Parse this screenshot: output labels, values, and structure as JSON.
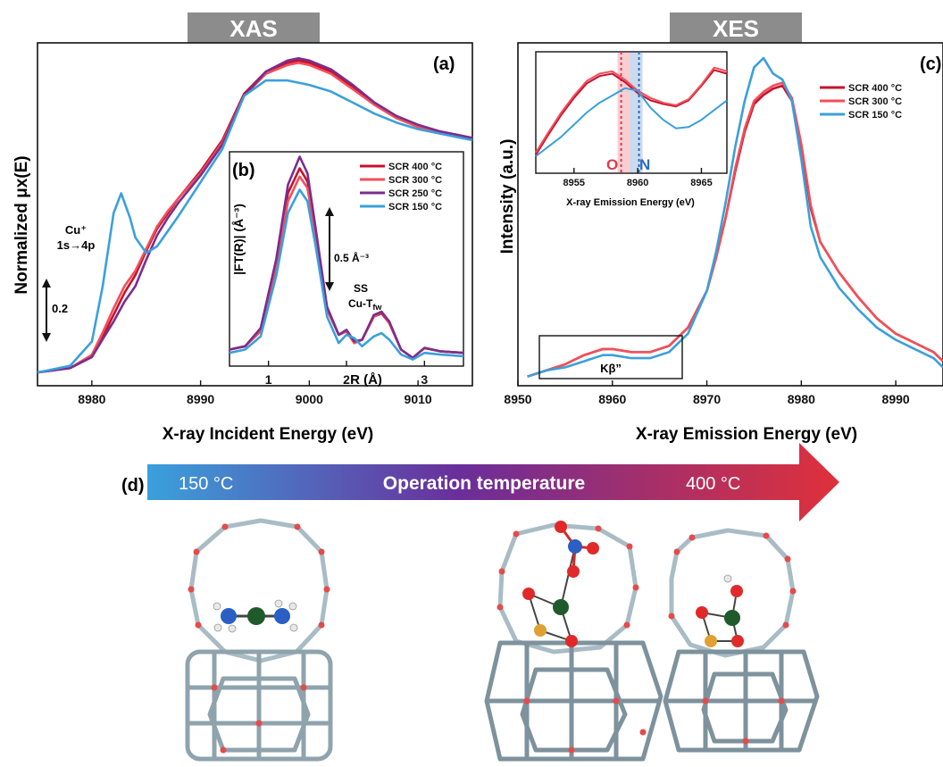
{
  "headers": {
    "xas": "XAS",
    "xes": "XES",
    "header_bg": "#8c8c8c"
  },
  "panel_a": {
    "letter": "(a)",
    "xlabel": "X-ray Incident Energy (eV)",
    "ylabel": "Normalized μx(E)",
    "cu_label_line1": "Cu⁺",
    "cu_label_line2": "1s→4p",
    "scalebar_label": "0.2"
  },
  "panel_b": {
    "letter": "(b)",
    "ylabel": "|FT(R)| (Å⁻³)",
    "xlabel": "R (Å)",
    "scalebar_label": "0.5 Å⁻³",
    "ss_label": "SS",
    "cutfw_label": "Cu-T",
    "cutfw_sub": "fw"
  },
  "panel_c": {
    "letter": "(c)",
    "xlabel": "X-ray Emission Energy (eV)",
    "ylabel": "Intensity (a.u.)",
    "kb_label": "Kβ”",
    "inset_xlabel": "X-ray Emission Energy (eV)",
    "o_label": "O",
    "n_label": "N"
  },
  "panel_d": {
    "letter": "(d)",
    "left_temp": "150 °C",
    "center_label": "Operation temperature",
    "right_temp": "400 °C",
    "arrow_colors": [
      "#3aa0dc",
      "#6a2e9a",
      "#e0303a"
    ]
  },
  "colors": {
    "scr400": "#c8102e",
    "scr300": "#f0505a",
    "scr250": "#7b2d8e",
    "scr150": "#3aa0dc",
    "O_line": "#e03a4a",
    "N_line": "#2a6cc0"
  },
  "chart_data": [
    {
      "id": "a",
      "type": "line",
      "title": "",
      "xlabel": "X-ray Incident Energy (eV)",
      "ylabel": "Normalized μx(E)",
      "xlim": [
        8975,
        9015
      ],
      "xticks": [
        8980,
        8990,
        9000,
        9010
      ],
      "ylim": [
        -0.05,
        1.5
      ],
      "series": [
        {
          "name": "SCR 400 °C",
          "color": "#c8102e",
          "x": [
            8975,
            8978,
            8980,
            8981,
            8982,
            8983,
            8984,
            8985,
            8986,
            8987,
            8988,
            8990,
            8992,
            8994,
            8996,
            8998,
            8999,
            9000,
            9002,
            9004,
            9006,
            9008,
            9010,
            9012,
            9015
          ],
          "y": [
            0.01,
            0.03,
            0.08,
            0.17,
            0.27,
            0.37,
            0.45,
            0.56,
            0.66,
            0.73,
            0.8,
            0.92,
            1.06,
            1.27,
            1.37,
            1.41,
            1.42,
            1.41,
            1.37,
            1.3,
            1.22,
            1.16,
            1.12,
            1.1,
            1.07
          ]
        },
        {
          "name": "SCR 300 °C",
          "color": "#f0505a",
          "x": [
            8975,
            8978,
            8980,
            8981,
            8982,
            8983,
            8984,
            8985,
            8986,
            8987,
            8988,
            8990,
            8992,
            8994,
            8996,
            8998,
            8999,
            9000,
            9002,
            9004,
            9006,
            9008,
            9010,
            9012,
            9015
          ],
          "y": [
            0.01,
            0.03,
            0.09,
            0.19,
            0.3,
            0.4,
            0.47,
            0.57,
            0.67,
            0.74,
            0.8,
            0.91,
            1.05,
            1.26,
            1.36,
            1.4,
            1.41,
            1.4,
            1.36,
            1.29,
            1.22,
            1.16,
            1.12,
            1.1,
            1.07
          ]
        },
        {
          "name": "SCR 250 °C",
          "color": "#7b2d8e",
          "x": [
            8975,
            8978,
            8980,
            8981,
            8982,
            8983,
            8984,
            8985,
            8986,
            8987,
            8988,
            8990,
            8992,
            8994,
            8996,
            8998,
            8999,
            9000,
            9002,
            9004,
            9006,
            9008,
            9010,
            9012,
            9015
          ],
          "y": [
            0.01,
            0.03,
            0.08,
            0.16,
            0.24,
            0.33,
            0.4,
            0.52,
            0.63,
            0.71,
            0.78,
            0.9,
            1.04,
            1.26,
            1.37,
            1.42,
            1.43,
            1.42,
            1.38,
            1.31,
            1.23,
            1.17,
            1.13,
            1.1,
            1.07
          ]
        },
        {
          "name": "SCR 150 °C",
          "color": "#3aa0dc",
          "x": [
            8975,
            8978,
            8980,
            8981,
            8982,
            8982.7,
            8983.5,
            8984,
            8985,
            8986,
            8987,
            8988,
            8990,
            8992,
            8994,
            8996,
            8998,
            9000,
            9002,
            9004,
            9006,
            9008,
            9010,
            9012,
            9015
          ],
          "y": [
            0.01,
            0.04,
            0.15,
            0.4,
            0.73,
            0.82,
            0.71,
            0.62,
            0.55,
            0.58,
            0.65,
            0.72,
            0.87,
            1.02,
            1.26,
            1.33,
            1.33,
            1.31,
            1.28,
            1.23,
            1.18,
            1.14,
            1.11,
            1.09,
            1.06
          ]
        }
      ]
    },
    {
      "id": "b",
      "type": "line",
      "title": "",
      "xlabel": "R (Å)",
      "ylabel": "|FT(R)| (Å⁻³)",
      "xlim": [
        0.5,
        3.5
      ],
      "xticks": [
        1,
        2,
        3
      ],
      "ylim": [
        0,
        1.3
      ],
      "legend": "top-right",
      "series": [
        {
          "name": "SCR 400 °C",
          "color": "#c8102e",
          "x": [
            0.5,
            0.7,
            0.9,
            1.1,
            1.25,
            1.4,
            1.5,
            1.6,
            1.75,
            1.9,
            2.0,
            2.1,
            2.2,
            2.35,
            2.45,
            2.55,
            2.7,
            2.85,
            3.0,
            3.2,
            3.5
          ],
          "y": [
            0.1,
            0.12,
            0.22,
            0.62,
            1.05,
            1.2,
            1.12,
            0.82,
            0.35,
            0.19,
            0.21,
            0.14,
            0.16,
            0.3,
            0.32,
            0.26,
            0.1,
            0.05,
            0.11,
            0.09,
            0.08
          ]
        },
        {
          "name": "SCR 300 °C",
          "color": "#f0505a",
          "x": [
            0.5,
            0.7,
            0.9,
            1.1,
            1.25,
            1.4,
            1.5,
            1.6,
            1.75,
            1.9,
            2.0,
            2.1,
            2.2,
            2.35,
            2.45,
            2.55,
            2.7,
            2.85,
            3.0,
            3.2,
            3.5
          ],
          "y": [
            0.1,
            0.12,
            0.21,
            0.6,
            1.0,
            1.15,
            1.08,
            0.8,
            0.34,
            0.19,
            0.21,
            0.14,
            0.16,
            0.3,
            0.33,
            0.26,
            0.1,
            0.05,
            0.11,
            0.09,
            0.08
          ]
        },
        {
          "name": "SCR 250 °C",
          "color": "#7b2d8e",
          "x": [
            0.5,
            0.7,
            0.9,
            1.1,
            1.25,
            1.4,
            1.5,
            1.6,
            1.75,
            1.9,
            2.0,
            2.1,
            2.2,
            2.35,
            2.45,
            2.55,
            2.7,
            2.85,
            3.0,
            3.2,
            3.5
          ],
          "y": [
            0.1,
            0.12,
            0.23,
            0.65,
            1.1,
            1.27,
            1.17,
            0.85,
            0.36,
            0.19,
            0.22,
            0.15,
            0.16,
            0.31,
            0.33,
            0.27,
            0.1,
            0.05,
            0.11,
            0.09,
            0.08
          ]
        },
        {
          "name": "SCR 150 °C",
          "color": "#3aa0dc",
          "x": [
            0.5,
            0.7,
            0.9,
            1.1,
            1.25,
            1.4,
            1.5,
            1.6,
            1.75,
            1.9,
            2.0,
            2.1,
            2.2,
            2.35,
            2.45,
            2.55,
            2.7,
            2.85,
            3.0,
            3.2,
            3.5
          ],
          "y": [
            0.08,
            0.1,
            0.18,
            0.55,
            0.93,
            1.07,
            1.0,
            0.74,
            0.3,
            0.14,
            0.19,
            0.17,
            0.12,
            0.18,
            0.2,
            0.16,
            0.07,
            0.04,
            0.08,
            0.07,
            0.06
          ]
        }
      ]
    },
    {
      "id": "c",
      "type": "line",
      "title": "",
      "xlabel": "X-ray Emission Energy (eV)",
      "ylabel": "Intensity (a.u.)",
      "xlim": [
        8950,
        8995
      ],
      "xticks": [
        8950,
        8960,
        8970,
        8980,
        8990
      ],
      "ylim": [
        0,
        1.12
      ],
      "legend": "top-right",
      "series": [
        {
          "name": "SCR 400 °C",
          "color": "#c8102e",
          "x": [
            8951,
            8953,
            8955,
            8957,
            8959,
            8960,
            8962,
            8964,
            8966,
            8968,
            8970,
            8971,
            8972,
            8973,
            8974,
            8975,
            8976,
            8977,
            8978,
            8979,
            8980,
            8981,
            8982,
            8983,
            8984,
            8986,
            8988,
            8990,
            8992,
            8994,
            8995
          ],
          "y": [
            0.03,
            0.05,
            0.07,
            0.1,
            0.12,
            0.12,
            0.11,
            0.11,
            0.13,
            0.19,
            0.31,
            0.42,
            0.55,
            0.7,
            0.83,
            0.92,
            0.95,
            0.97,
            0.98,
            0.93,
            0.78,
            0.58,
            0.47,
            0.42,
            0.37,
            0.29,
            0.22,
            0.17,
            0.14,
            0.11,
            0.08
          ]
        },
        {
          "name": "SCR 300 °C",
          "color": "#f0505a",
          "x": [
            8951,
            8953,
            8955,
            8957,
            8959,
            8960,
            8962,
            8964,
            8966,
            8968,
            8970,
            8971,
            8972,
            8973,
            8974,
            8975,
            8976,
            8977,
            8978,
            8979,
            8980,
            8981,
            8982,
            8983,
            8984,
            8986,
            8988,
            8990,
            8992,
            8994,
            8995
          ],
          "y": [
            0.03,
            0.05,
            0.07,
            0.1,
            0.12,
            0.12,
            0.11,
            0.11,
            0.13,
            0.19,
            0.31,
            0.42,
            0.55,
            0.71,
            0.84,
            0.93,
            0.96,
            0.98,
            0.99,
            0.94,
            0.79,
            0.59,
            0.47,
            0.42,
            0.37,
            0.29,
            0.22,
            0.17,
            0.14,
            0.11,
            0.08
          ]
        },
        {
          "name": "SCR 150 °C",
          "color": "#3aa0dc",
          "x": [
            8951,
            8953,
            8955,
            8957,
            8959,
            8960,
            8962,
            8964,
            8966,
            8968,
            8970,
            8971,
            8972,
            8973,
            8974,
            8975,
            8976,
            8977,
            8978,
            8979,
            8980,
            8981,
            8982,
            8983,
            8984,
            8986,
            8988,
            8990,
            8992,
            8994,
            8995
          ],
          "y": [
            0.03,
            0.05,
            0.06,
            0.08,
            0.1,
            0.1,
            0.09,
            0.09,
            0.11,
            0.17,
            0.31,
            0.44,
            0.6,
            0.78,
            0.93,
            1.04,
            1.07,
            1.02,
            1.0,
            0.93,
            0.74,
            0.52,
            0.42,
            0.37,
            0.32,
            0.25,
            0.19,
            0.15,
            0.12,
            0.09,
            0.06
          ]
        }
      ]
    },
    {
      "id": "c-inset",
      "type": "line",
      "title": "",
      "xlabel": "X-ray Emission Energy (eV)",
      "ylabel": "",
      "xlim": [
        8952,
        8967
      ],
      "xticks": [
        8955,
        8960,
        8965
      ],
      "ylim": [
        0,
        1
      ],
      "series": [
        {
          "name": "SCR 400 °C",
          "color": "#c8102e",
          "x": [
            8952,
            8953,
            8954,
            8955,
            8956,
            8957,
            8958,
            8959,
            8960,
            8961,
            8962,
            8963,
            8964,
            8965,
            8966,
            8967
          ],
          "y": [
            0.15,
            0.32,
            0.48,
            0.62,
            0.74,
            0.8,
            0.82,
            0.75,
            0.66,
            0.6,
            0.57,
            0.55,
            0.6,
            0.72,
            0.85,
            0.82
          ]
        },
        {
          "name": "SCR 300 °C",
          "color": "#f0505a",
          "x": [
            8952,
            8953,
            8954,
            8955,
            8956,
            8957,
            8958,
            8959,
            8960,
            8961,
            8962,
            8963,
            8964,
            8965,
            8966,
            8967
          ],
          "y": [
            0.17,
            0.34,
            0.5,
            0.64,
            0.76,
            0.82,
            0.84,
            0.77,
            0.68,
            0.62,
            0.58,
            0.56,
            0.61,
            0.73,
            0.87,
            0.84
          ]
        },
        {
          "name": "SCR 150 °C",
          "color": "#3aa0dc",
          "x": [
            8952,
            8953,
            8954,
            8955,
            8956,
            8957,
            8958,
            8959,
            8960,
            8961,
            8962,
            8963,
            8964,
            8965,
            8966,
            8967
          ],
          "y": [
            0.14,
            0.22,
            0.3,
            0.4,
            0.5,
            0.58,
            0.64,
            0.7,
            0.68,
            0.54,
            0.44,
            0.37,
            0.38,
            0.44,
            0.52,
            0.6
          ]
        }
      ],
      "markers": [
        {
          "label": "O",
          "x": 8958.7,
          "color": "#e03a4a"
        },
        {
          "label": "N",
          "x": 8960.1,
          "color": "#2a6cc0"
        }
      ]
    }
  ]
}
